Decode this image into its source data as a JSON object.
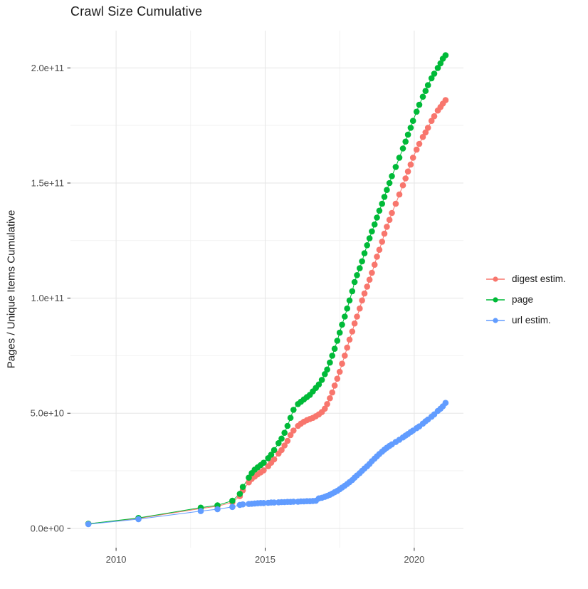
{
  "title": "Crawl Size Cumulative",
  "colors": {
    "digest": "#F8766D",
    "page": "#00BA38",
    "url": "#619CFF",
    "grid_major": "#E5E5E5",
    "grid_minor": "#F2F2F2",
    "tick_mark": "#333333",
    "tick_label": "#4d4d4d",
    "background": "#FFFFFF"
  },
  "legend": {
    "position": "right",
    "items": [
      {
        "label": "digest estim.",
        "color": "#F8766D"
      },
      {
        "label": "page",
        "color": "#00BA38"
      },
      {
        "label": "url estim.",
        "color": "#619CFF"
      }
    ]
  },
  "chart_data": {
    "type": "scatter",
    "title": "Crawl Size Cumulative",
    "xlabel": "",
    "ylabel": "Pages / Unique Items Cumulative",
    "grid": true,
    "legend_position": "right",
    "xlim": [
      2008.47,
      2021.65
    ],
    "ylim": [
      -8400000000.0,
      216200000000.0
    ],
    "x_ticks": [
      2010,
      2015,
      2020
    ],
    "x_tick_labels": [
      "2010",
      "2015",
      "2020"
    ],
    "x_minor_ticks": [
      2012.5,
      2017.5
    ],
    "y_ticks": [
      0,
      50000000000.0,
      100000000000.0,
      150000000000.0,
      200000000000.0
    ],
    "y_tick_labels": [
      "0.0e+00",
      "5.0e+10",
      "1.0e+11",
      "1.5e+11",
      "2.0e+11"
    ],
    "y_minor_ticks": [
      25000000000.0,
      75000000000.0,
      125000000000.0,
      175000000000.0
    ],
    "value_unit": 1000000000.0,
    "x": [
      2009.07,
      2010.75,
      2012.84,
      2013.4,
      2013.9,
      2014.15,
      2014.25,
      2014.45,
      2014.55,
      2014.65,
      2014.75,
      2014.85,
      2014.95,
      2015.1,
      2015.2,
      2015.3,
      2015.45,
      2015.55,
      2015.65,
      2015.75,
      2015.85,
      2015.95,
      2016.1,
      2016.2,
      2016.3,
      2016.4,
      2016.5,
      2016.6,
      2016.7,
      2016.8,
      2016.9,
      2017.0,
      2017.08,
      2017.17,
      2017.25,
      2017.33,
      2017.42,
      2017.5,
      2017.58,
      2017.67,
      2017.75,
      2017.83,
      2017.92,
      2018.0,
      2018.08,
      2018.17,
      2018.25,
      2018.33,
      2018.42,
      2018.5,
      2018.58,
      2018.67,
      2018.75,
      2018.83,
      2018.92,
      2019.0,
      2019.08,
      2019.17,
      2019.25,
      2019.38,
      2019.5,
      2019.62,
      2019.71,
      2019.79,
      2019.88,
      2019.96,
      2020.08,
      2020.17,
      2020.29,
      2020.38,
      2020.46,
      2020.58,
      2020.67,
      2020.79,
      2020.88,
      2020.96,
      2021.05
    ],
    "series": [
      {
        "name": "digest estim.",
        "color": "#F8766D",
        "values_billions": [
          2.0,
          4.3,
          8.6,
          9.6,
          11.3,
          14.0,
          16.5,
          20.0,
          21.5,
          22.5,
          23.5,
          24.3,
          25.2,
          27.0,
          28.5,
          30.0,
          32.5,
          34.0,
          36.0,
          38.0,
          40.5,
          42.5,
          44.5,
          45.5,
          46.3,
          47.0,
          47.5,
          48.0,
          48.7,
          49.5,
          50.5,
          52.0,
          54.0,
          56.5,
          59.0,
          62.0,
          65.0,
          68.0,
          71.5,
          75.0,
          78.5,
          82.0,
          85.5,
          89.0,
          92.0,
          95.5,
          99.0,
          102.0,
          105.0,
          108.0,
          111.0,
          114.5,
          118.0,
          121.0,
          124.5,
          128.0,
          131.0,
          134.0,
          137.0,
          141.0,
          145.0,
          149.0,
          152.0,
          155.0,
          158.0,
          161.0,
          164.5,
          167.0,
          170.0,
          172.0,
          174.0,
          177.0,
          179.0,
          181.5,
          183.0,
          184.5,
          186.0
        ]
      },
      {
        "name": "page",
        "color": "#00BA38",
        "values_billions": [
          2.0,
          4.5,
          9.0,
          10.0,
          12.0,
          15.0,
          18.0,
          22.0,
          24.0,
          25.5,
          26.5,
          27.5,
          28.5,
          30.5,
          32.0,
          34.0,
          37.0,
          39.0,
          41.5,
          44.5,
          48.0,
          51.5,
          54.0,
          55.0,
          56.0,
          57.0,
          58.0,
          59.5,
          61.0,
          62.5,
          64.5,
          67.0,
          69.0,
          72.0,
          75.0,
          78.0,
          81.5,
          85.0,
          88.5,
          92.0,
          95.5,
          99.0,
          103.0,
          107.0,
          110.0,
          113.0,
          116.0,
          119.5,
          123.0,
          126.0,
          129.0,
          132.0,
          135.0,
          138.0,
          141.0,
          144.0,
          147.0,
          150.0,
          153.0,
          157.0,
          161.0,
          165.0,
          168.0,
          171.0,
          174.0,
          177.0,
          181.0,
          184.0,
          187.5,
          190.0,
          192.5,
          195.5,
          197.5,
          200.0,
          202.0,
          204.0,
          205.5
        ]
      },
      {
        "name": "url estim.",
        "color": "#619CFF",
        "values_billions": [
          1.8,
          4.0,
          7.5,
          8.3,
          9.3,
          10.2,
          10.4,
          10.6,
          10.7,
          10.8,
          10.9,
          11.0,
          11.0,
          11.1,
          11.2,
          11.2,
          11.3,
          11.4,
          11.4,
          11.5,
          11.5,
          11.6,
          11.6,
          11.7,
          11.7,
          11.8,
          11.8,
          11.9,
          12.0,
          13.0,
          13.3,
          13.7,
          14.1,
          14.6,
          15.1,
          15.7,
          16.3,
          17.0,
          17.7,
          18.5,
          19.3,
          20.1,
          21.0,
          22.0,
          23.0,
          24.0,
          25.0,
          26.0,
          27.0,
          28.0,
          29.2,
          30.3,
          31.3,
          32.3,
          33.3,
          34.2,
          35.0,
          35.8,
          36.5,
          37.5,
          38.5,
          39.5,
          40.3,
          41.0,
          41.8,
          42.5,
          43.5,
          44.3,
          45.5,
          46.5,
          47.3,
          48.5,
          49.5,
          51.0,
          52.0,
          53.0,
          54.5
        ]
      }
    ]
  }
}
